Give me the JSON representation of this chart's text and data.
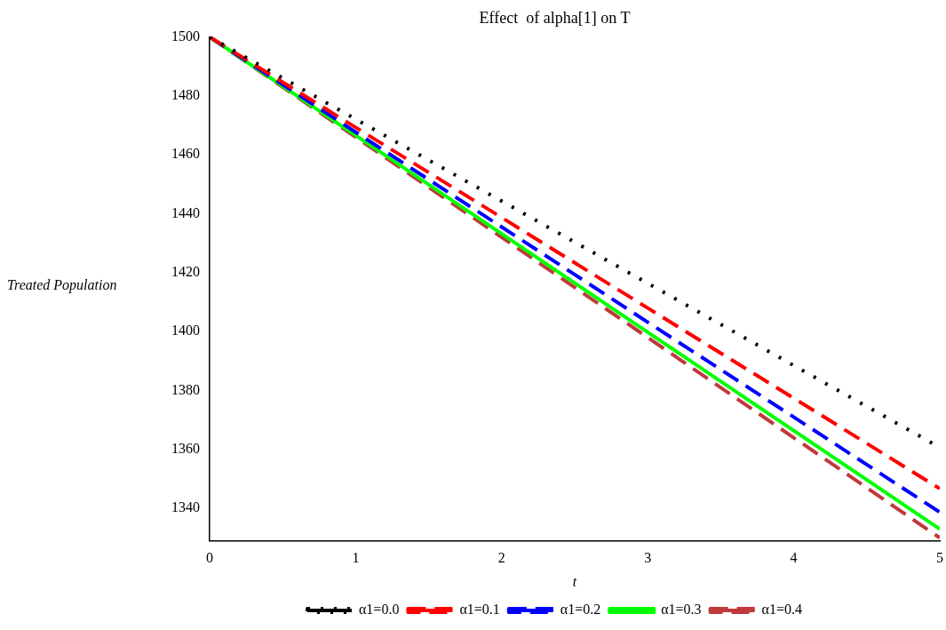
{
  "chart_data": {
    "type": "line",
    "title": "Effect  of alpha[1] on T",
    "xlabel": "t",
    "ylabel": "Treated Population",
    "x": [
      0,
      1,
      2,
      3,
      4,
      5
    ],
    "series": [
      {
        "name": "α1=0.0",
        "color": "#000000",
        "line_style": "dotted",
        "values": [
          1500,
          1472.1,
          1444.3,
          1416.4,
          1388.5,
          1360.7
        ]
      },
      {
        "name": "α1=0.1",
        "color": "#ff0000",
        "line_style": "dashed",
        "values": [
          1500,
          1469.3,
          1438.7,
          1408,
          1377.4,
          1346.7
        ]
      },
      {
        "name": "α1=0.2",
        "color": "#0000ff",
        "line_style": "dashed",
        "values": [
          1500,
          1467.7,
          1435.5,
          1403.2,
          1371,
          1338.7
        ]
      },
      {
        "name": "α1=0.3",
        "color": "#00ff00",
        "line_style": "solid",
        "values": [
          1500,
          1466.6,
          1433.2,
          1399.8,
          1366.4,
          1333
        ]
      },
      {
        "name": "α1=0.4",
        "color": "#c0393b",
        "line_style": "dashed",
        "values": [
          1500,
          1466,
          1432,
          1398,
          1364,
          1330
        ]
      }
    ],
    "xlim": [
      0,
      5
    ],
    "xticks": [
      0,
      1,
      2,
      3,
      4,
      5
    ],
    "ylim": [
      1329,
      1500
    ],
    "yticks": [
      1340,
      1360,
      1380,
      1400,
      1420,
      1440,
      1460,
      1480,
      1500
    ],
    "grid": false,
    "legend": "bottom",
    "marker": "none"
  }
}
